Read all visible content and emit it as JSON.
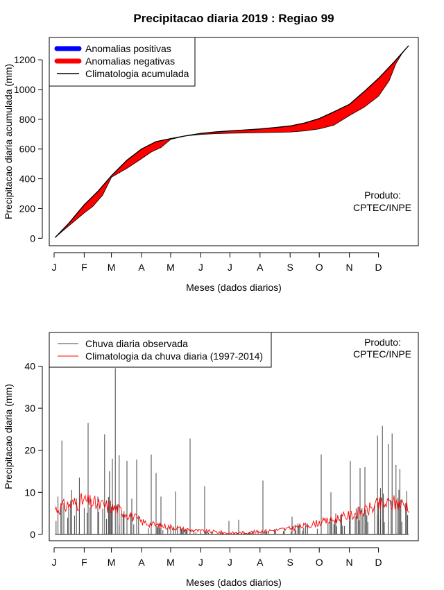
{
  "colors": {
    "positive": "#0000ff",
    "negative": "#ff0000",
    "climatology": "#000000",
    "observed_bars": "#444444",
    "clim_daily": "#ff0000"
  },
  "chart_data": [
    {
      "type": "area",
      "title": "Precipitacao diaria 2019 : Regiao 99",
      "xlabel": "Meses (dados diarios)",
      "ylabel": "Precipitacao diaria acumulada (mm)",
      "xlim": [
        -5,
        375
      ],
      "ylim": [
        -50,
        1350
      ],
      "yticks": [
        0,
        200,
        400,
        600,
        800,
        1000,
        1200
      ],
      "month_labels": [
        "J",
        "F",
        "M",
        "A",
        "M",
        "J",
        "J",
        "A",
        "S",
        "O",
        "N",
        "D"
      ],
      "month_starts": [
        0,
        31,
        59,
        90,
        120,
        151,
        181,
        212,
        243,
        273,
        304,
        334
      ],
      "legend": [
        "Anomalias positivas",
        "Anomalias negativas",
        "Climatologia acumulada"
      ],
      "credit": [
        "Produto:",
        "CPTEC/INPE"
      ],
      "climatology_accumulated": {
        "days": [
          1,
          15,
          31,
          45,
          59,
          75,
          90,
          105,
          120,
          135,
          151,
          166,
          181,
          196,
          212,
          228,
          243,
          258,
          273,
          288,
          304,
          319,
          334,
          350,
          365
        ],
        "values": [
          5,
          100,
          225,
          315,
          420,
          525,
          600,
          650,
          670,
          688,
          705,
          715,
          722,
          728,
          735,
          745,
          755,
          775,
          805,
          850,
          900,
          985,
          1075,
          1185,
          1295
        ]
      },
      "observed_accumulated": {
        "days": [
          1,
          10,
          20,
          31,
          40,
          50,
          59,
          75,
          90,
          100,
          110,
          120,
          135,
          151,
          166,
          181,
          196,
          212,
          228,
          243,
          258,
          273,
          288,
          304,
          319,
          334,
          345,
          352,
          358,
          365
        ],
        "values": [
          5,
          55,
          110,
          170,
          215,
          290,
          410,
          470,
          535,
          580,
          610,
          665,
          688,
          698,
          703,
          706,
          708,
          710,
          712,
          714,
          722,
          735,
          760,
          825,
          880,
          955,
          1060,
          1175,
          1240,
          1295
        ]
      }
    },
    {
      "type": "bar",
      "xlabel": "Meses (dados diarios)",
      "ylabel": "Precipitacao diaria (mm)",
      "xlim": [
        -5,
        375
      ],
      "ylim": [
        -1.5,
        48
      ],
      "yticks": [
        0,
        10,
        20,
        30,
        40
      ],
      "month_labels": [
        "J",
        "F",
        "M",
        "A",
        "M",
        "J",
        "J",
        "A",
        "S",
        "O",
        "N",
        "D"
      ],
      "month_starts": [
        0,
        31,
        59,
        90,
        120,
        151,
        181,
        212,
        243,
        273,
        304,
        334
      ],
      "legend": [
        "Chuva diaria observada",
        "Climatologia da chuva diaria (1997-2014)"
      ],
      "credit": [
        "Produto:",
        "CPTEC/INPE"
      ],
      "observed_daily_peaks": {
        "days": [
          4,
          8,
          17,
          26,
          35,
          45,
          52,
          57,
          60,
          63,
          67,
          75,
          80,
          85,
          100,
          105,
          110,
          125,
          140,
          155,
          180,
          190,
          215,
          245,
          275,
          285,
          290,
          296,
          305,
          315,
          320,
          333,
          336,
          338,
          344,
          348,
          352,
          356
        ],
        "values": [
          9,
          22.3,
          8,
          13.5,
          26.5,
          9,
          23.8,
          15,
          18,
          39.5,
          18.8,
          17.5,
          8.5,
          17.8,
          19,
          14.6,
          9,
          10.2,
          22.8,
          11.5,
          3.2,
          3.5,
          12.8,
          4.2,
          19,
          10,
          5,
          4.8,
          17.5,
          15.8,
          16,
          23.5,
          11,
          25.8,
          21.5,
          24,
          16.5,
          15.5
        ]
      },
      "climatology_daily": {
        "days": [
          1,
          15,
          31,
          45,
          59,
          75,
          90,
          105,
          120,
          135,
          151,
          166,
          181,
          196,
          212,
          228,
          243,
          258,
          273,
          288,
          304,
          319,
          334,
          350,
          365
        ],
        "values": [
          6,
          7,
          8,
          7,
          6.5,
          5,
          3,
          2.2,
          1.8,
          1.2,
          0.8,
          0.6,
          0.3,
          0.4,
          0.7,
          1,
          1.4,
          2,
          2.8,
          3.5,
          4.5,
          5.5,
          7,
          7.5,
          7
        ]
      }
    }
  ]
}
